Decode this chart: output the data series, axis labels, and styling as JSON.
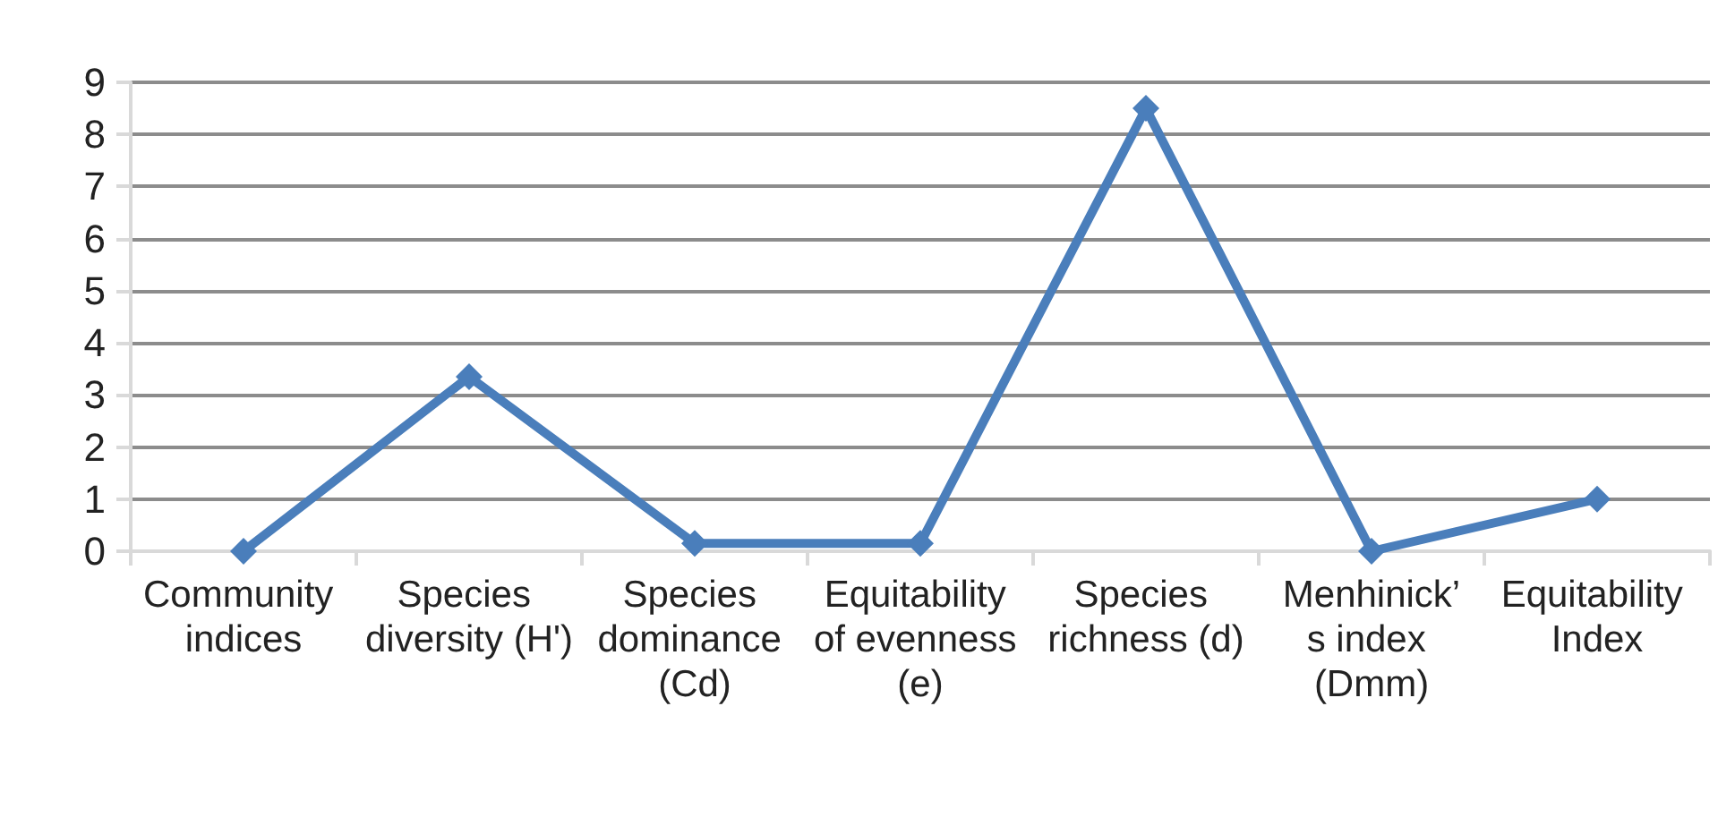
{
  "chart_data": {
    "type": "line",
    "categories": [
      "Community indices",
      "Species diversity (H')",
      "Species dominance (Cd)",
      "Equitability of evenness (e)",
      "Species richness (d)",
      "Menhinick’s index (Dmm)",
      "Equitability Index"
    ],
    "series": [
      {
        "color": "#4a7ebb",
        "values": [
          0,
          3.35,
          0.15,
          0.15,
          8.5,
          0,
          1
        ]
      }
    ],
    "ylim": [
      0,
      9
    ],
    "yticks": [
      0,
      1,
      2,
      3,
      4,
      5,
      6,
      7,
      8,
      9
    ],
    "grid": "y",
    "marker": "diamond",
    "line_style": "solid"
  }
}
